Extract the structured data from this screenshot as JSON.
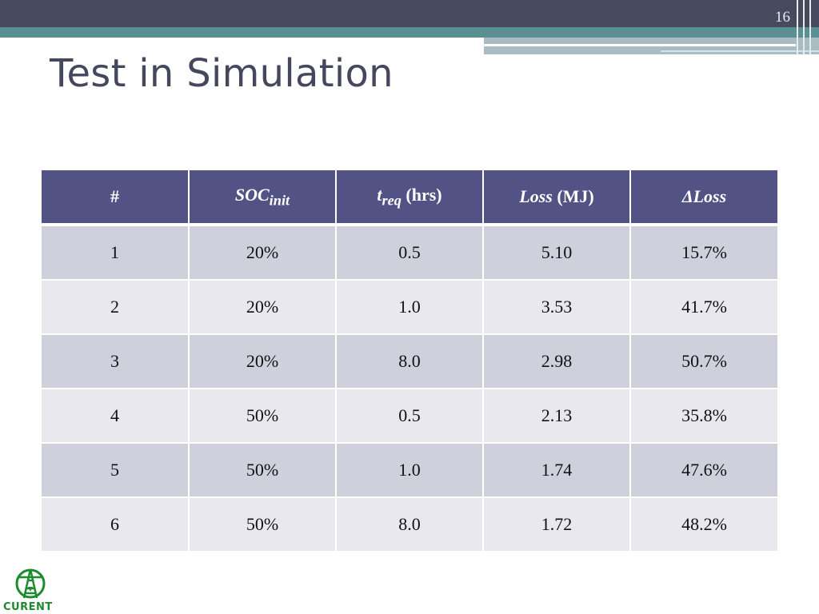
{
  "slide": {
    "page_number": "16",
    "title": "Test in Simulation"
  },
  "table": {
    "headers": {
      "col1": "#",
      "col2_main": "SOC",
      "col2_sub": "init",
      "col3_main": "t",
      "col3_sub": "req",
      "col3_unit": " (hrs)",
      "col4_main": "Loss",
      "col4_unit": " (MJ)",
      "col5_delta": "Δ",
      "col5_main": "Loss"
    },
    "rows": [
      {
        "n": "1",
        "soc": "20%",
        "treq": "0.5",
        "loss": "5.10",
        "dloss": "15.7%"
      },
      {
        "n": "2",
        "soc": "20%",
        "treq": "1.0",
        "loss": "3.53",
        "dloss": "41.7%"
      },
      {
        "n": "3",
        "soc": "20%",
        "treq": "8.0",
        "loss": "2.98",
        "dloss": "50.7%"
      },
      {
        "n": "4",
        "soc": "50%",
        "treq": "0.5",
        "loss": "2.13",
        "dloss": "35.8%"
      },
      {
        "n": "5",
        "soc": "50%",
        "treq": "1.0",
        "loss": "1.74",
        "dloss": "47.6%"
      },
      {
        "n": "6",
        "soc": "50%",
        "treq": "8.0",
        "loss": "1.72",
        "dloss": "48.2%"
      }
    ]
  },
  "logo": {
    "text": "CURENT",
    "icon": "power-tower-logo-icon",
    "color": "#1e8a2e"
  },
  "colors": {
    "header_dark": "#474a5e",
    "header_teal": "#5a8f94",
    "table_header": "#525285",
    "row_odd": "#cfd0db",
    "row_even": "#e8e8ee"
  }
}
